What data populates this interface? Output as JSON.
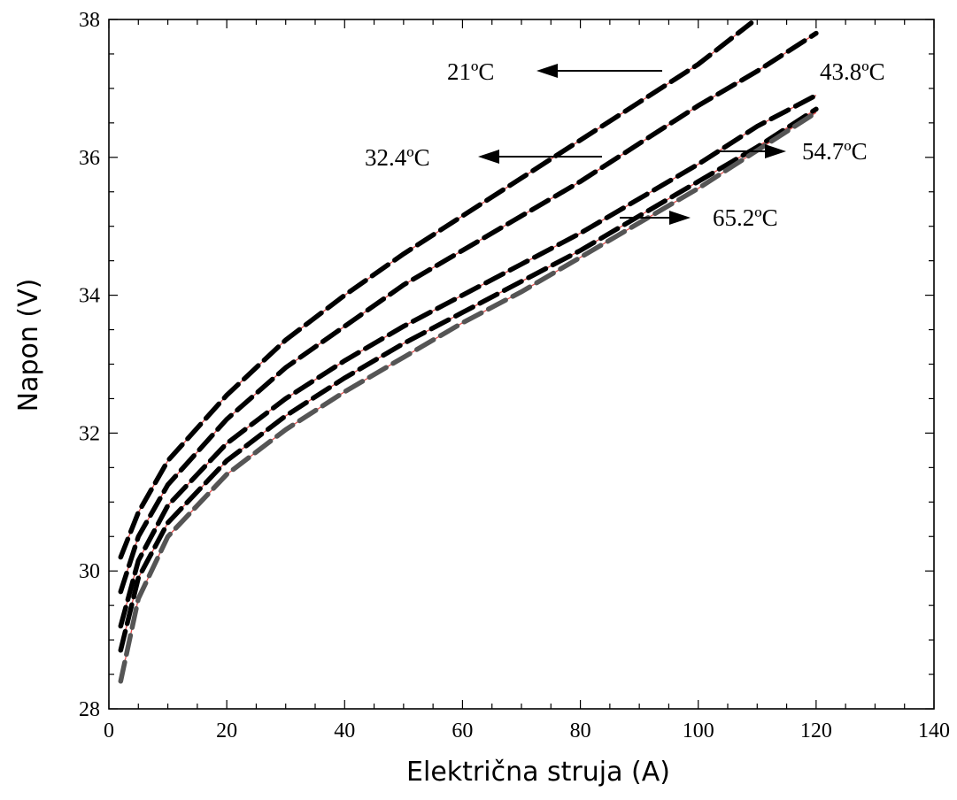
{
  "chart_data": {
    "type": "line",
    "title": "",
    "xlabel": "Električna struja (A)",
    "ylabel": "Napon (V)",
    "xlim": [
      0,
      140
    ],
    "ylim": [
      28,
      38
    ],
    "x_ticks": [
      "0",
      "20",
      "40",
      "60",
      "80",
      "100",
      "120",
      "140"
    ],
    "y_ticks": [
      "28",
      "30",
      "32",
      "34",
      "36",
      "38"
    ],
    "grid": false,
    "legend": "none",
    "series": [
      {
        "name": "21ºC",
        "color": "#000000",
        "x": [
          2,
          5,
          10,
          20,
          30,
          40,
          50,
          60,
          70,
          80,
          90,
          100,
          109
        ],
        "y": [
          30.2,
          30.85,
          31.6,
          32.55,
          33.35,
          34.0,
          34.6,
          35.15,
          35.7,
          36.25,
          36.8,
          37.35,
          37.95
        ]
      },
      {
        "name": "32.4ºC",
        "color": "#000000",
        "x": [
          2,
          5,
          10,
          20,
          30,
          40,
          50,
          60,
          70,
          80,
          90,
          100,
          110,
          120
        ],
        "y": [
          29.7,
          30.5,
          31.25,
          32.2,
          32.95,
          33.55,
          34.15,
          34.65,
          35.15,
          35.65,
          36.2,
          36.75,
          37.25,
          37.8
        ]
      },
      {
        "name": "43.8ºC",
        "color": "#000000",
        "x": [
          2,
          5,
          10,
          20,
          30,
          40,
          50,
          60,
          70,
          80,
          90,
          100,
          110,
          120
        ],
        "y": [
          29.2,
          30.15,
          30.95,
          31.85,
          32.5,
          33.05,
          33.55,
          34.0,
          34.45,
          34.9,
          35.4,
          35.9,
          36.45,
          36.9
        ]
      },
      {
        "name": "54.7ºC",
        "color": "#000000",
        "x": [
          2,
          5,
          10,
          20,
          30,
          40,
          50,
          60,
          70,
          80,
          90,
          100,
          110,
          120
        ],
        "y": [
          28.85,
          29.9,
          30.7,
          31.6,
          32.25,
          32.8,
          33.3,
          33.75,
          34.2,
          34.65,
          35.15,
          35.65,
          36.15,
          36.7
        ]
      },
      {
        "name": "65.2ºC",
        "color": "#555555",
        "x": [
          2,
          5,
          10,
          20,
          30,
          40,
          50,
          60,
          70,
          80,
          90,
          100,
          110,
          120
        ],
        "y": [
          28.4,
          29.6,
          30.5,
          31.4,
          32.05,
          32.6,
          33.1,
          33.6,
          34.05,
          34.55,
          35.05,
          35.55,
          36.1,
          36.65
        ]
      }
    ],
    "annotations": [
      {
        "text": "21ºC",
        "arrow": "left"
      },
      {
        "text": "32.4ºC",
        "arrow": "left"
      },
      {
        "text": "43.8ºC",
        "arrow": "none"
      },
      {
        "text": "54.7ºC",
        "arrow": "right"
      },
      {
        "text": "65.2ºC",
        "arrow": "right"
      }
    ]
  }
}
